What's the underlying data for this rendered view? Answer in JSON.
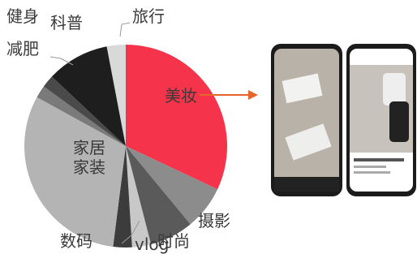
{
  "chart_data": {
    "type": "pie",
    "categories": [
      "美妆",
      "摄影",
      "时尚",
      "vlog",
      "数码",
      "家居家装",
      "减肥",
      "健身",
      "科普",
      "旅行"
    ],
    "values": [
      32,
      7,
      7,
      3,
      3,
      31,
      2,
      2,
      10,
      3
    ],
    "colors": [
      "#f5334a",
      "#8c8c8c",
      "#5a5a5a",
      "#c8c8c8",
      "#3c3c3c",
      "#b4b4b4",
      "#7a7a7a",
      "#4a4a4a",
      "#1e1e1e",
      "#d9d9d9"
    ]
  }
}
